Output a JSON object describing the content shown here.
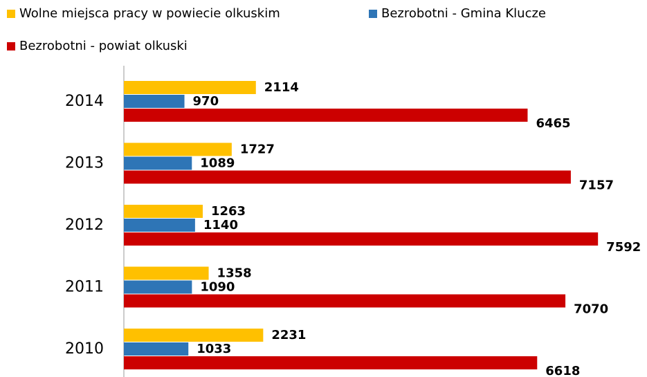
{
  "chart_data": {
    "type": "bar",
    "orientation": "horizontal",
    "categories": [
      "2014",
      "2013",
      "2012",
      "2011",
      "2010"
    ],
    "series": [
      {
        "name": "Wolne miejsca pracy w powiecie olkuskim",
        "color": "#ffc000",
        "values": [
          2114,
          1727,
          1263,
          1358,
          2231
        ]
      },
      {
        "name": "Bezrobotni - Gmina Klucze",
        "color": "#2e75b6",
        "values": [
          970,
          1089,
          1140,
          1090,
          1033
        ]
      },
      {
        "name": "Bezrobotni - powiat olkuski",
        "color": "#cc0000",
        "values": [
          6465,
          7157,
          7592,
          7070,
          6618
        ]
      }
    ],
    "xlim": [
      0,
      8000
    ],
    "legend": "top"
  }
}
